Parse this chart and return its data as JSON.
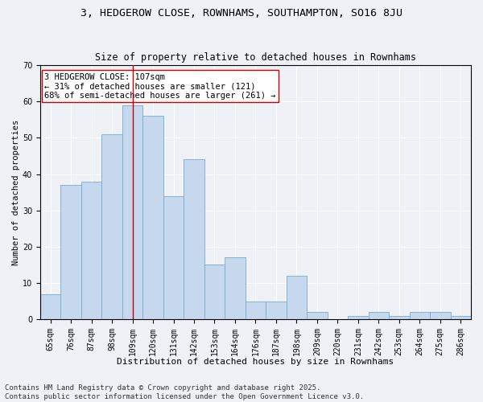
{
  "title": "3, HEDGEROW CLOSE, ROWNHAMS, SOUTHAMPTON, SO16 8JU",
  "subtitle": "Size of property relative to detached houses in Rownhams",
  "xlabel": "Distribution of detached houses by size in Rownhams",
  "ylabel": "Number of detached properties",
  "categories": [
    "65sqm",
    "76sqm",
    "87sqm",
    "98sqm",
    "109sqm",
    "120sqm",
    "131sqm",
    "142sqm",
    "153sqm",
    "164sqm",
    "176sqm",
    "187sqm",
    "198sqm",
    "209sqm",
    "220sqm",
    "231sqm",
    "242sqm",
    "253sqm",
    "264sqm",
    "275sqm",
    "286sqm"
  ],
  "values": [
    7,
    37,
    38,
    51,
    59,
    56,
    34,
    44,
    15,
    17,
    5,
    5,
    12,
    2,
    0,
    1,
    2,
    1,
    2,
    2,
    1
  ],
  "bar_color": "#c5d8ed",
  "bar_edge_color": "#7aaac8",
  "vline_x_index": 4,
  "vline_color": "#cc0000",
  "annotation_text": "3 HEDGEROW CLOSE: 107sqm\n← 31% of detached houses are smaller (121)\n68% of semi-detached houses are larger (261) →",
  "annotation_box_color": "#ffffff",
  "annotation_box_edge_color": "#cc0000",
  "ylim": [
    0,
    70
  ],
  "yticks": [
    0,
    10,
    20,
    30,
    40,
    50,
    60,
    70
  ],
  "background_color": "#eef2f7",
  "plot_bg_color": "#eef2f7",
  "footer": "Contains HM Land Registry data © Crown copyright and database right 2025.\nContains public sector information licensed under the Open Government Licence v3.0.",
  "title_fontsize": 9.5,
  "subtitle_fontsize": 8.5,
  "xlabel_fontsize": 8,
  "ylabel_fontsize": 7.5,
  "tick_fontsize": 7,
  "annotation_fontsize": 7.5,
  "footer_fontsize": 6.5
}
